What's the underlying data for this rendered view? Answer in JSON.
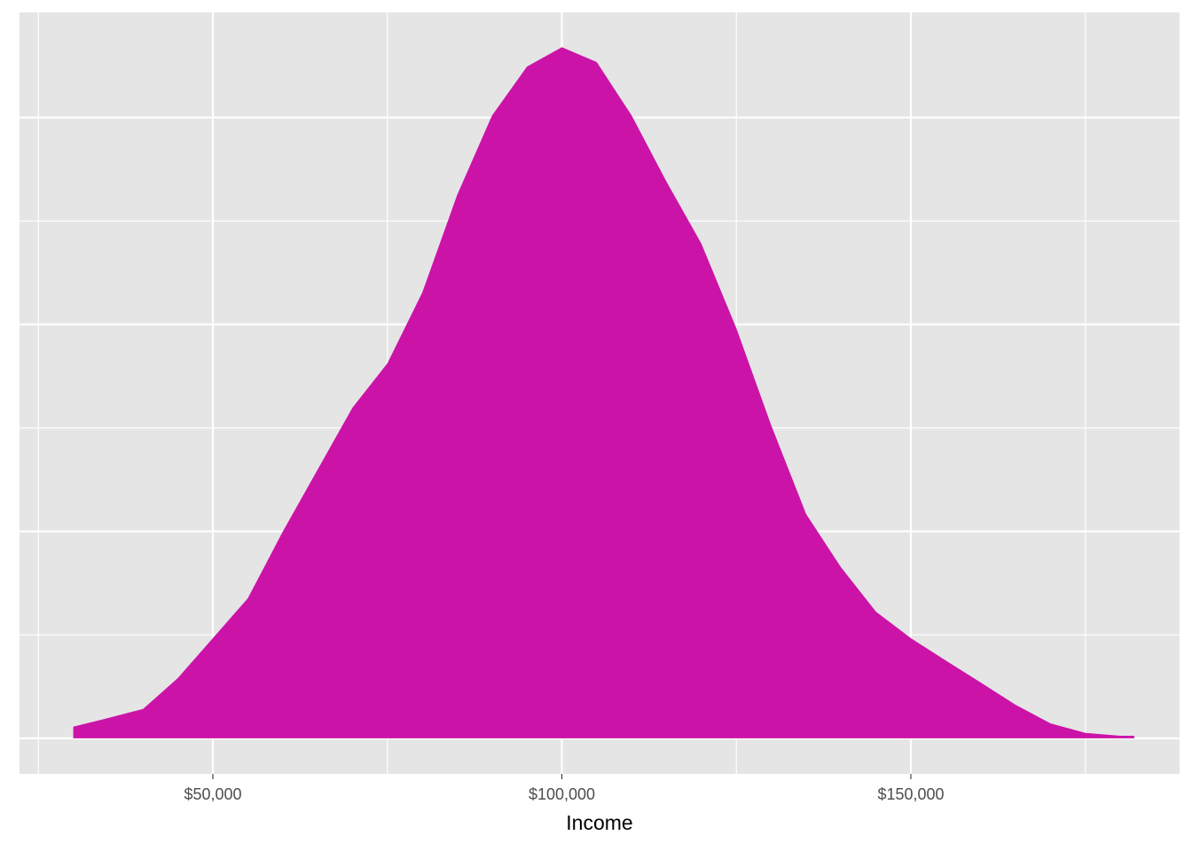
{
  "chart_data": {
    "type": "area",
    "xlabel": "Income",
    "color": "#cc13a8",
    "grid": true,
    "x": [
      30000,
      35000,
      40000,
      45000,
      50000,
      55000,
      60000,
      65000,
      70000,
      75000,
      80000,
      85000,
      90000,
      95000,
      100000,
      105000,
      110000,
      115000,
      120000,
      125000,
      130000,
      135000,
      140000,
      145000,
      150000,
      155000,
      160000,
      165000,
      170000,
      175000,
      180000,
      182000
    ],
    "values": [
      2.8e-07,
      4.9e-07,
      7.1e-07,
      1.46e-06,
      2.42e-06,
      3.38e-06,
      4.99e-06,
      6.49e-06,
      7.99e-06,
      9.06e-06,
      1.077e-05,
      1.313e-05,
      1.505e-05,
      1.623e-05,
      1.67e-05,
      1.634e-05,
      1.505e-05,
      1.345e-05,
      1.195e-05,
      9.91e-06,
      7.56e-06,
      5.42e-06,
      4.13e-06,
      3.06e-06,
      2.42e-06,
      1.88e-06,
      1.35e-06,
      8.1e-07,
      3.6e-07,
      1.3e-07,
      6e-08,
      6e-08
    ],
    "xlim": [
      22300,
      188500
    ],
    "xticks": [
      {
        "value": 50000,
        "label": "$50,000"
      },
      {
        "value": 100000,
        "label": "$100,000"
      },
      {
        "value": 150000,
        "label": "$150,000"
      }
    ],
    "x_minor_ticks": [
      25000,
      75000,
      125000,
      175000
    ],
    "ylim": [
      -8.6e-07,
      1.754e-05
    ],
    "yticks": [
      0,
      5e-06,
      1e-05,
      1.5e-05
    ],
    "y_minor_ticks": [
      2.5e-06,
      7.5e-06,
      1.25e-05
    ]
  }
}
